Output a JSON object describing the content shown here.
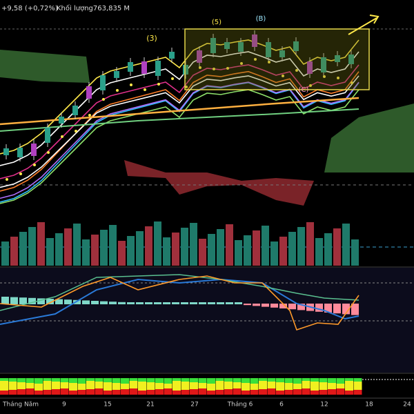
{
  "header": {
    "change": "+9,58 (+0,72%)",
    "volume": "Khối lượng763,835 M"
  },
  "wave_labels": [
    "(3)",
    "(5)",
    "(B)",
    "(C)"
  ],
  "x_axis": [
    "Tháng Năm",
    "9",
    "15",
    "21",
    "27",
    "Tháng 6",
    "6",
    "12",
    "18",
    "24"
  ]
}
